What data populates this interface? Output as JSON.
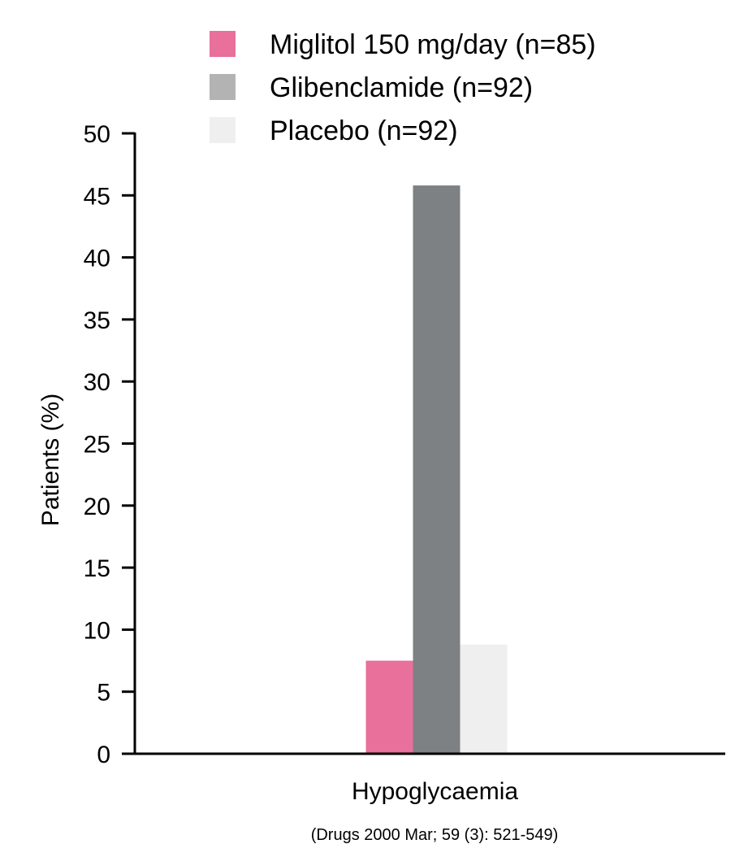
{
  "chart_data": {
    "type": "bar",
    "categories": [
      "Hypoglycaemia"
    ],
    "series": [
      {
        "name": "Miglitol 150 mg/day (n=85)",
        "values": [
          7.5
        ],
        "color": "#e8709b",
        "legend_color": "#e8709b"
      },
      {
        "name": "Glibenclamide (n=92)",
        "values": [
          45.8
        ],
        "color": "#7e8183",
        "legend_color": "#b3b3b3"
      },
      {
        "name": "Placebo (n=92)",
        "values": [
          8.8
        ],
        "color": "#efefef",
        "legend_color": "#efefef"
      }
    ],
    "ylabel": "Patients (%)",
    "xlabel": "",
    "ylim": [
      0,
      50
    ],
    "yticks": [
      0,
      5,
      10,
      15,
      20,
      25,
      30,
      35,
      40,
      45,
      50
    ],
    "grid": false,
    "legend_position": "top"
  },
  "source": "(Drugs 2000 Mar; 59 (3): 521-549)"
}
